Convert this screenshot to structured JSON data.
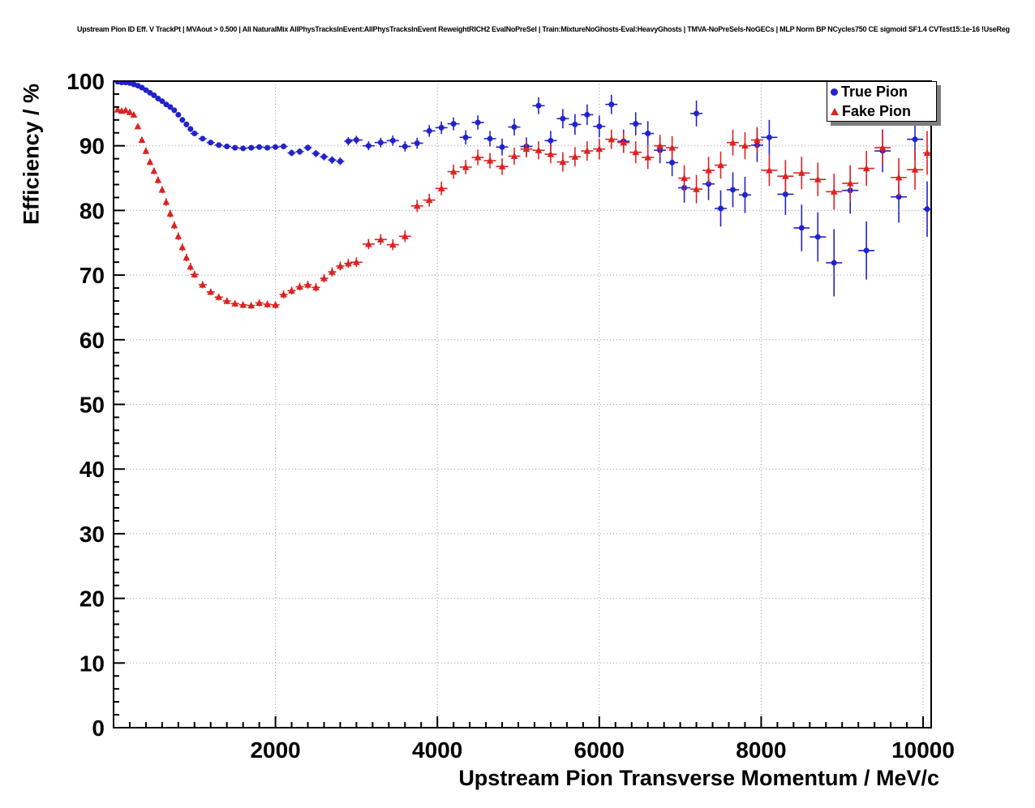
{
  "title": "Upstream Pion ID Eff. V TrackPt | MVAout > 0.500 | All NaturalMix AllPhysTracksInEvent:AllPhysTracksInEvent ReweightRICH2 EvalNoPreSel | Train:MixtureNoGhosts-Eval:HeavyGhosts | TMVA-NoPreSels-NoGECs | MLP Norm BP NCycles750 CE sigmoid SF1.4 CVTest15:1e-16 !UseReg",
  "chart_data": {
    "type": "scatter",
    "xlabel": "Upstream Pion Transverse Momentum / MeV/c",
    "ylabel": "Efficiency / %",
    "xlim": [
      0,
      10100
    ],
    "ylim": [
      0,
      100
    ],
    "x_ticks": [
      2000,
      4000,
      6000,
      8000,
      10000
    ],
    "y_ticks": [
      0,
      10,
      20,
      30,
      40,
      50,
      60,
      70,
      80,
      90,
      100
    ],
    "x_minor_step": 200,
    "y_minor_step": 2,
    "grid": "dotted",
    "legend": {
      "position": "top-right",
      "entries": [
        {
          "label": "True Pion",
          "color": "#2222cc",
          "marker": "circle"
        },
        {
          "label": "Fake Pion",
          "color": "#dd2222",
          "marker": "triangle"
        }
      ]
    },
    "series": [
      {
        "name": "True Pion",
        "marker": "circle",
        "color": "#2222cc",
        "points": [
          [
            50,
            99.9,
            0.2,
            25
          ],
          [
            100,
            99.8,
            0.2,
            25
          ],
          [
            150,
            99.8,
            0.2,
            25
          ],
          [
            200,
            99.7,
            0.2,
            25
          ],
          [
            250,
            99.5,
            0.2,
            25
          ],
          [
            300,
            99.3,
            0.25,
            25
          ],
          [
            350,
            99.0,
            0.25,
            25
          ],
          [
            400,
            98.6,
            0.3,
            25
          ],
          [
            450,
            98.2,
            0.3,
            25
          ],
          [
            500,
            97.8,
            0.3,
            25
          ],
          [
            550,
            97.3,
            0.35,
            25
          ],
          [
            600,
            96.9,
            0.35,
            25
          ],
          [
            650,
            96.4,
            0.35,
            25
          ],
          [
            700,
            96.0,
            0.4,
            25
          ],
          [
            750,
            95.5,
            0.4,
            25
          ],
          [
            800,
            94.8,
            0.4,
            25
          ],
          [
            850,
            94.0,
            0.45,
            25
          ],
          [
            900,
            93.3,
            0.45,
            25
          ],
          [
            950,
            92.6,
            0.45,
            25
          ],
          [
            1000,
            91.9,
            0.4,
            50
          ],
          [
            1100,
            91.1,
            0.4,
            50
          ],
          [
            1200,
            90.5,
            0.4,
            50
          ],
          [
            1300,
            90.1,
            0.4,
            50
          ],
          [
            1400,
            89.9,
            0.35,
            50
          ],
          [
            1500,
            89.7,
            0.35,
            50
          ],
          [
            1600,
            89.6,
            0.35,
            50
          ],
          [
            1700,
            89.7,
            0.35,
            50
          ],
          [
            1800,
            89.8,
            0.4,
            50
          ],
          [
            1900,
            89.7,
            0.4,
            50
          ],
          [
            2000,
            89.8,
            0.4,
            50
          ],
          [
            2100,
            89.9,
            0.45,
            50
          ],
          [
            2200,
            88.9,
            0.5,
            50
          ],
          [
            2300,
            89.1,
            0.5,
            50
          ],
          [
            2400,
            89.7,
            0.5,
            50
          ],
          [
            2500,
            88.8,
            0.55,
            50
          ],
          [
            2600,
            88.3,
            0.55,
            50
          ],
          [
            2700,
            87.8,
            0.6,
            50
          ],
          [
            2800,
            87.6,
            0.6,
            50
          ],
          [
            2900,
            90.7,
            0.65,
            50
          ],
          [
            3000,
            90.9,
            0.65,
            75
          ],
          [
            3150,
            90.0,
            0.7,
            75
          ],
          [
            3300,
            90.5,
            0.75,
            75
          ],
          [
            3450,
            90.8,
            0.8,
            75
          ],
          [
            3600,
            89.9,
            0.8,
            75
          ],
          [
            3750,
            90.4,
            0.85,
            75
          ],
          [
            3900,
            92.3,
            0.9,
            75
          ],
          [
            4050,
            92.8,
            0.95,
            75
          ],
          [
            4200,
            93.4,
            1.0,
            75
          ],
          [
            4350,
            91.3,
            1.1,
            75
          ],
          [
            4500,
            93.6,
            1.1,
            75
          ],
          [
            4650,
            91.1,
            1.2,
            75
          ],
          [
            4800,
            89.8,
            1.3,
            75
          ],
          [
            4950,
            92.9,
            1.3,
            75
          ],
          [
            5100,
            89.9,
            1.4,
            75
          ],
          [
            5250,
            96.2,
            1.3,
            75
          ],
          [
            5400,
            90.8,
            1.5,
            75
          ],
          [
            5550,
            94.2,
            1.5,
            75
          ],
          [
            5700,
            93.3,
            1.6,
            75
          ],
          [
            5850,
            94.8,
            1.6,
            75
          ],
          [
            6000,
            93.0,
            1.7,
            75
          ],
          [
            6150,
            96.4,
            1.5,
            75
          ],
          [
            6300,
            90.7,
            1.8,
            75
          ],
          [
            6450,
            93.4,
            1.8,
            75
          ],
          [
            6600,
            91.9,
            1.9,
            75
          ],
          [
            6750,
            89.3,
            2.0,
            75
          ],
          [
            6900,
            87.4,
            2.1,
            75
          ],
          [
            7050,
            83.5,
            2.3,
            75
          ],
          [
            7200,
            95.0,
            2.0,
            75
          ],
          [
            7350,
            84.1,
            2.5,
            75
          ],
          [
            7500,
            80.3,
            2.8,
            75
          ],
          [
            7650,
            83.2,
            2.7,
            75
          ],
          [
            7800,
            82.4,
            2.8,
            75
          ],
          [
            7950,
            90.1,
            2.6,
            75
          ],
          [
            8100,
            91.3,
            2.7,
            100
          ],
          [
            8300,
            82.5,
            3.2,
            100
          ],
          [
            8500,
            77.3,
            3.6,
            100
          ],
          [
            8700,
            75.9,
            3.8,
            100
          ],
          [
            8900,
            71.9,
            5.2,
            100
          ],
          [
            9100,
            83.1,
            3.6,
            100
          ],
          [
            9300,
            73.8,
            4.5,
            100
          ],
          [
            9500,
            89.2,
            3.3,
            100
          ],
          [
            9700,
            82.1,
            4.0,
            100
          ],
          [
            9900,
            91.0,
            3.2,
            100
          ],
          [
            10050,
            80.2,
            4.3,
            50
          ]
        ]
      },
      {
        "name": "Fake Pion",
        "marker": "triangle",
        "color": "#dd2222",
        "points": [
          [
            50,
            95.6,
            0.3,
            25
          ],
          [
            100,
            95.4,
            0.3,
            25
          ],
          [
            150,
            95.5,
            0.3,
            25
          ],
          [
            200,
            95.2,
            0.35,
            25
          ],
          [
            250,
            94.8,
            0.4,
            25
          ],
          [
            300,
            93.0,
            0.4,
            25
          ],
          [
            350,
            90.9,
            0.45,
            25
          ],
          [
            400,
            89.2,
            0.5,
            25
          ],
          [
            450,
            87.5,
            0.5,
            25
          ],
          [
            500,
            86.1,
            0.5,
            25
          ],
          [
            550,
            84.7,
            0.55,
            25
          ],
          [
            600,
            83.2,
            0.55,
            25
          ],
          [
            650,
            81.3,
            0.6,
            25
          ],
          [
            700,
            79.5,
            0.6,
            25
          ],
          [
            750,
            77.7,
            0.6,
            25
          ],
          [
            800,
            76.0,
            0.6,
            25
          ],
          [
            850,
            74.3,
            0.6,
            25
          ],
          [
            900,
            72.7,
            0.6,
            25
          ],
          [
            950,
            71.3,
            0.6,
            25
          ],
          [
            1000,
            70.1,
            0.55,
            50
          ],
          [
            1100,
            68.5,
            0.55,
            50
          ],
          [
            1200,
            67.4,
            0.5,
            50
          ],
          [
            1300,
            66.6,
            0.5,
            50
          ],
          [
            1400,
            66.0,
            0.5,
            50
          ],
          [
            1500,
            65.6,
            0.5,
            50
          ],
          [
            1600,
            65.4,
            0.5,
            50
          ],
          [
            1700,
            65.3,
            0.5,
            50
          ],
          [
            1800,
            65.7,
            0.55,
            50
          ],
          [
            1900,
            65.5,
            0.55,
            50
          ],
          [
            2000,
            65.4,
            0.55,
            50
          ],
          [
            2100,
            67.0,
            0.6,
            50
          ],
          [
            2200,
            67.6,
            0.6,
            50
          ],
          [
            2300,
            68.2,
            0.6,
            50
          ],
          [
            2400,
            68.5,
            0.6,
            50
          ],
          [
            2500,
            68.1,
            0.65,
            50
          ],
          [
            2600,
            69.5,
            0.65,
            50
          ],
          [
            2700,
            70.5,
            0.7,
            50
          ],
          [
            2800,
            71.4,
            0.7,
            50
          ],
          [
            2900,
            71.8,
            0.7,
            50
          ],
          [
            3000,
            72.0,
            0.75,
            75
          ],
          [
            3150,
            74.8,
            0.8,
            75
          ],
          [
            3300,
            75.5,
            0.85,
            75
          ],
          [
            3450,
            74.7,
            0.85,
            75
          ],
          [
            3600,
            76.0,
            0.9,
            75
          ],
          [
            3750,
            80.7,
            0.95,
            75
          ],
          [
            3900,
            81.6,
            1.0,
            75
          ],
          [
            4050,
            83.4,
            1.05,
            75
          ],
          [
            4200,
            86.0,
            1.1,
            75
          ],
          [
            4350,
            86.7,
            1.1,
            75
          ],
          [
            4500,
            88.2,
            1.2,
            75
          ],
          [
            4650,
            87.7,
            1.2,
            75
          ],
          [
            4800,
            86.8,
            1.3,
            75
          ],
          [
            4950,
            88.4,
            1.3,
            75
          ],
          [
            5100,
            89.5,
            1.3,
            75
          ],
          [
            5250,
            89.3,
            1.4,
            75
          ],
          [
            5400,
            88.7,
            1.4,
            75
          ],
          [
            5550,
            87.5,
            1.5,
            75
          ],
          [
            5700,
            88.3,
            1.5,
            75
          ],
          [
            5850,
            89.2,
            1.5,
            75
          ],
          [
            6000,
            89.5,
            1.6,
            75
          ],
          [
            6150,
            91.0,
            1.5,
            75
          ],
          [
            6300,
            90.5,
            1.6,
            75
          ],
          [
            6450,
            89.0,
            1.7,
            75
          ],
          [
            6600,
            88.2,
            1.8,
            75
          ],
          [
            6750,
            90.0,
            1.7,
            75
          ],
          [
            6900,
            89.7,
            1.8,
            75
          ],
          [
            7050,
            85.0,
            2.0,
            75
          ],
          [
            7200,
            83.3,
            2.2,
            75
          ],
          [
            7350,
            86.2,
            2.1,
            75
          ],
          [
            7500,
            87.0,
            2.1,
            75
          ],
          [
            7650,
            90.5,
            2.0,
            75
          ],
          [
            7800,
            90.0,
            2.1,
            75
          ],
          [
            7950,
            90.9,
            2.0,
            75
          ],
          [
            8100,
            86.2,
            2.4,
            100
          ],
          [
            8300,
            85.3,
            2.5,
            100
          ],
          [
            8500,
            85.8,
            2.5,
            100
          ],
          [
            8700,
            84.8,
            2.6,
            100
          ],
          [
            8900,
            82.9,
            2.8,
            100
          ],
          [
            9100,
            84.2,
            2.8,
            100
          ],
          [
            9300,
            86.5,
            2.7,
            100
          ],
          [
            9500,
            89.7,
            2.6,
            100
          ],
          [
            9700,
            85.1,
            3.0,
            100
          ],
          [
            9900,
            86.3,
            3.1,
            100
          ],
          [
            10050,
            88.9,
            3.4,
            50
          ]
        ]
      }
    ]
  }
}
